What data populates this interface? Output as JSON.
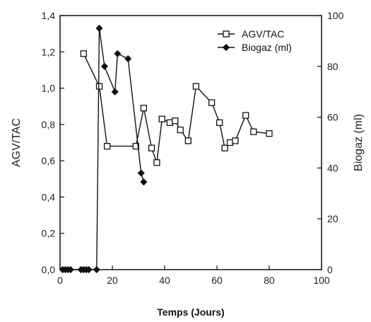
{
  "chart_data": {
    "type": "line",
    "title": "",
    "xlabel": "Temps (Jours)",
    "ylabel_left": "AGV/TAC",
    "ylabel_right": "Biogaz (ml)",
    "xlim": [
      0,
      100
    ],
    "ylim_left": [
      0,
      1.4
    ],
    "ylim_right": [
      0,
      100
    ],
    "x_ticks": [
      "0",
      "20",
      "40",
      "60",
      "80",
      "100"
    ],
    "y_left_ticks": [
      "0,0",
      "0,2",
      "0,4",
      "0,6",
      "0,8",
      "1,0",
      "1,2",
      "1,4"
    ],
    "y_right_ticks": [
      "0",
      "20",
      "40",
      "60",
      "80",
      "100"
    ],
    "grid": false,
    "legend": "top-right",
    "series": [
      {
        "name": "AGV/TAC",
        "axis": "left",
        "marker": "open-square",
        "color": "#111111",
        "points": [
          [
            9,
            1.19
          ],
          [
            15,
            1.01
          ],
          [
            18,
            0.68
          ],
          [
            29,
            0.68
          ],
          [
            32,
            0.89
          ],
          [
            35,
            0.67
          ],
          [
            37,
            0.59
          ],
          [
            39,
            0.83
          ],
          [
            42,
            0.81
          ],
          [
            44,
            0.82
          ],
          [
            46,
            0.77
          ],
          [
            49,
            0.71
          ],
          [
            52,
            1.01
          ],
          [
            58,
            0.92
          ],
          [
            61,
            0.81
          ],
          [
            63,
            0.67
          ],
          [
            65,
            0.7
          ],
          [
            67,
            0.71
          ],
          [
            71,
            0.85
          ],
          [
            74,
            0.76
          ],
          [
            80,
            0.75
          ]
        ]
      },
      {
        "name": "Biogaz (ml)",
        "axis": "right",
        "marker": "filled-diamond",
        "color": "#111111",
        "points": [
          [
            1,
            0
          ],
          [
            2,
            0
          ],
          [
            3,
            0
          ],
          [
            4,
            0
          ],
          [
            8,
            0
          ],
          [
            9,
            0
          ],
          [
            10,
            0
          ],
          [
            11,
            0
          ],
          [
            14,
            0
          ],
          [
            15,
            95
          ],
          [
            17,
            80
          ],
          [
            21,
            70
          ],
          [
            22,
            85
          ],
          [
            26,
            83
          ],
          [
            31,
            38
          ],
          [
            32,
            34.5
          ]
        ]
      }
    ]
  }
}
